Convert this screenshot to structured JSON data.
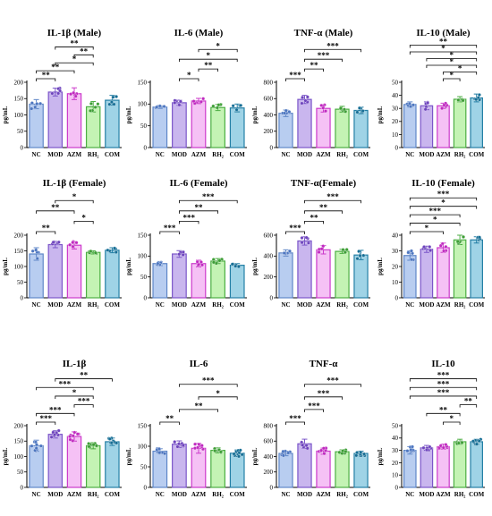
{
  "figure": {
    "categories": [
      "NC",
      "MOD",
      "AZM",
      "RH2",
      "COM"
    ],
    "colors": {
      "fills": [
        "#b8cdf0",
        "#c9b6ee",
        "#f5c1f5",
        "#c4f3b4",
        "#9fd3e6"
      ],
      "edges": [
        "#5f87c8",
        "#7b56c9",
        "#cc3acb",
        "#4cae43",
        "#247fa5"
      ],
      "points": [
        "#4d76c0",
        "#6e44bd",
        "#c02ac0",
        "#3d9e35",
        "#166e95"
      ]
    }
  },
  "chart_data": [
    {
      "type": "bar",
      "title": "IL-1β (Male)",
      "ylabel": "pg/mL",
      "categories": [
        "NC",
        "MOD",
        "AZM",
        "RH₂",
        "COM"
      ],
      "values": [
        133,
        170,
        165,
        125,
        145
      ],
      "errors": [
        14,
        12,
        18,
        16,
        15
      ],
      "ylim": [
        0,
        200
      ],
      "yticks": [
        0,
        50,
        100,
        150,
        200
      ],
      "significance": [
        {
          "a": 0,
          "b": 1,
          "label": "**"
        },
        {
          "a": 0,
          "b": 2,
          "label": "**"
        },
        {
          "a": 1,
          "b": 3,
          "label": "*"
        },
        {
          "a": 2,
          "b": 3,
          "label": "**"
        },
        {
          "a": 1,
          "b": 3,
          "label": "**"
        }
      ]
    },
    {
      "type": "bar",
      "title": "IL-6 (Male)",
      "ylabel": "pg/mL",
      "categories": [
        "NC",
        "MOD",
        "AZM",
        "RH₂",
        "COM"
      ],
      "values": [
        93,
        103,
        107,
        92,
        91
      ],
      "errors": [
        3,
        6,
        6,
        7,
        9
      ],
      "ylim": [
        0,
        150
      ],
      "yticks": [
        0,
        50,
        100,
        150
      ],
      "significance": [
        {
          "a": 1,
          "b": 2,
          "label": "*"
        },
        {
          "a": 2,
          "b": 3,
          "label": "**"
        },
        {
          "a": 1,
          "b": 4,
          "label": "*"
        },
        {
          "a": 2,
          "b": 4,
          "label": "*"
        }
      ]
    },
    {
      "type": "bar",
      "title": "TNF-α (Male)",
      "ylabel": "pg/mL",
      "categories": [
        "NC",
        "MOD",
        "AZM",
        "RH₂",
        "COM"
      ],
      "values": [
        420,
        590,
        480,
        470,
        455
      ],
      "errors": [
        40,
        50,
        45,
        35,
        40
      ],
      "ylim": [
        0,
        800
      ],
      "yticks": [
        0,
        200,
        400,
        600,
        800
      ],
      "significance": [
        {
          "a": 0,
          "b": 1,
          "label": "***"
        },
        {
          "a": 1,
          "b": 2,
          "label": "**"
        },
        {
          "a": 1,
          "b": 3,
          "label": "***"
        },
        {
          "a": 1,
          "b": 4,
          "label": "***"
        }
      ]
    },
    {
      "type": "bar",
      "title": "IL-10 (Male)",
      "ylabel": "pg/mL",
      "categories": [
        "NC",
        "MOD",
        "AZM",
        "RH₂",
        "COM"
      ],
      "values": [
        33,
        32,
        32,
        37,
        38
      ],
      "errors": [
        2,
        3,
        2,
        2,
        3
      ],
      "ylim": [
        0,
        50
      ],
      "yticks": [
        0,
        10,
        20,
        30,
        40,
        50
      ],
      "significance": [
        {
          "a": 2,
          "b": 3,
          "label": "*"
        },
        {
          "a": 2,
          "b": 4,
          "label": "*"
        },
        {
          "a": 1,
          "b": 4,
          "label": "*"
        },
        {
          "a": 1,
          "b": 4,
          "label": "*"
        },
        {
          "a": 0,
          "b": 4,
          "label": "*"
        },
        {
          "a": 0,
          "b": 4,
          "label": "**"
        }
      ]
    },
    {
      "type": "bar",
      "title": "IL-1β (Female)",
      "ylabel": "pg/mL",
      "categories": [
        "NC",
        "MOD",
        "AZM",
        "RH₂",
        "COM"
      ],
      "values": [
        140,
        170,
        168,
        145,
        152
      ],
      "errors": [
        20,
        10,
        12,
        5,
        8
      ],
      "ylim": [
        0,
        200
      ],
      "yticks": [
        0,
        50,
        100,
        150,
        200
      ],
      "significance": [
        {
          "a": 0,
          "b": 1,
          "label": "**"
        },
        {
          "a": 2,
          "b": 3,
          "label": "*"
        },
        {
          "a": 0,
          "b": 2,
          "label": "**"
        },
        {
          "a": 1,
          "b": 3,
          "label": "*"
        }
      ]
    },
    {
      "type": "bar",
      "title": "IL-6 (Female)",
      "ylabel": "pg/mL",
      "categories": [
        "NC",
        "MOD",
        "AZM",
        "RH₂",
        "COM"
      ],
      "values": [
        82,
        105,
        82,
        88,
        78
      ],
      "errors": [
        5,
        8,
        8,
        6,
        4
      ],
      "ylim": [
        0,
        150
      ],
      "yticks": [
        0,
        50,
        100,
        150
      ],
      "significance": [
        {
          "a": 0,
          "b": 1,
          "label": "***"
        },
        {
          "a": 1,
          "b": 2,
          "label": "***"
        },
        {
          "a": 1,
          "b": 3,
          "label": "**"
        },
        {
          "a": 1,
          "b": 4,
          "label": "***"
        }
      ]
    },
    {
      "type": "bar",
      "title": "TNF-α(Female)",
      "ylabel": "pg/mL",
      "categories": [
        "NC",
        "MOD",
        "AZM",
        "RH₂",
        "COM"
      ],
      "values": [
        430,
        545,
        460,
        445,
        410
      ],
      "errors": [
        30,
        40,
        40,
        20,
        45
      ],
      "ylim": [
        0,
        600
      ],
      "yticks": [
        0,
        200,
        400,
        600
      ],
      "significance": [
        {
          "a": 0,
          "b": 1,
          "label": "***"
        },
        {
          "a": 1,
          "b": 2,
          "label": "**"
        },
        {
          "a": 1,
          "b": 3,
          "label": "**"
        },
        {
          "a": 1,
          "b": 4,
          "label": "***"
        }
      ]
    },
    {
      "type": "bar",
      "title": "IL-10 (Female)",
      "ylabel": "pg/mL",
      "categories": [
        "NC",
        "MOD",
        "AZM",
        "RH₂",
        "COM"
      ],
      "values": [
        27,
        31,
        32,
        37,
        37
      ],
      "errors": [
        3,
        2,
        3,
        3,
        2
      ],
      "ylim": [
        0,
        40
      ],
      "yticks": [
        0,
        10,
        20,
        30,
        40
      ],
      "significance": [
        {
          "a": 0,
          "b": 2,
          "label": "*"
        },
        {
          "a": 0,
          "b": 3,
          "label": "*"
        },
        {
          "a": 0,
          "b": 3,
          "label": "***"
        },
        {
          "a": 0,
          "b": 4,
          "label": "*"
        },
        {
          "a": 0,
          "b": 4,
          "label": "***"
        }
      ]
    },
    {
      "type": "bar",
      "title": "IL-1β",
      "ylabel": "pg/mL",
      "categories": [
        "NC",
        "MOD",
        "AZM",
        "RH₂",
        "COM"
      ],
      "values": [
        135,
        172,
        165,
        135,
        148
      ],
      "errors": [
        18,
        12,
        15,
        10,
        12
      ],
      "ylim": [
        0,
        200
      ],
      "yticks": [
        0,
        50,
        100,
        150,
        200
      ],
      "significance": [
        {
          "a": 0,
          "b": 1,
          "label": "***"
        },
        {
          "a": 0,
          "b": 2,
          "label": "***"
        },
        {
          "a": 2,
          "b": 3,
          "label": "***"
        },
        {
          "a": 1,
          "b": 3,
          "label": "*"
        },
        {
          "a": 0,
          "b": 3,
          "label": "***"
        },
        {
          "a": 1,
          "b": 4,
          "label": "**"
        }
      ]
    },
    {
      "type": "bar",
      "title": "IL-6",
      "ylabel": "pg/mL",
      "categories": [
        "NC",
        "MOD",
        "AZM",
        "RH₂",
        "COM"
      ],
      "values": [
        88,
        105,
        95,
        90,
        83
      ],
      "errors": [
        6,
        8,
        12,
        6,
        8
      ],
      "ylim": [
        0,
        150
      ],
      "yticks": [
        0,
        50,
        100,
        150
      ],
      "significance": [
        {
          "a": 0,
          "b": 1,
          "label": "**"
        },
        {
          "a": 1,
          "b": 3,
          "label": "**"
        },
        {
          "a": 2,
          "b": 4,
          "label": "*"
        },
        {
          "a": 1,
          "b": 4,
          "label": "***"
        }
      ]
    },
    {
      "type": "bar",
      "title": "TNF-α",
      "ylabel": "pg/mL",
      "categories": [
        "NC",
        "MOD",
        "AZM",
        "RH₂",
        "COM"
      ],
      "values": [
        440,
        565,
        470,
        462,
        440
      ],
      "errors": [
        30,
        60,
        40,
        25,
        30
      ],
      "ylim": [
        0,
        800
      ],
      "yticks": [
        0,
        200,
        400,
        600,
        800
      ],
      "significance": [
        {
          "a": 0,
          "b": 1,
          "label": "***"
        },
        {
          "a": 1,
          "b": 2,
          "label": "***"
        },
        {
          "a": 1,
          "b": 3,
          "label": "***"
        },
        {
          "a": 1,
          "b": 4,
          "label": "***"
        }
      ]
    },
    {
      "type": "bar",
      "title": "IL-10",
      "ylabel": "pg/mL",
      "categories": [
        "NC",
        "MOD",
        "AZM",
        "RH₂",
        "COM"
      ],
      "values": [
        30,
        32,
        33,
        37,
        37
      ],
      "errors": [
        3,
        2,
        2,
        2,
        2
      ],
      "ylim": [
        0,
        50
      ],
      "yticks": [
        0,
        10,
        20,
        30,
        40,
        50
      ],
      "significance": [
        {
          "a": 2,
          "b": 3,
          "label": "*"
        },
        {
          "a": 1,
          "b": 3,
          "label": "**"
        },
        {
          "a": 3,
          "b": 4,
          "label": "**"
        },
        {
          "a": 0,
          "b": 4,
          "label": "***"
        },
        {
          "a": 0,
          "b": 4,
          "label": "***"
        },
        {
          "a": 0,
          "b": 4,
          "label": "***"
        }
      ]
    }
  ]
}
